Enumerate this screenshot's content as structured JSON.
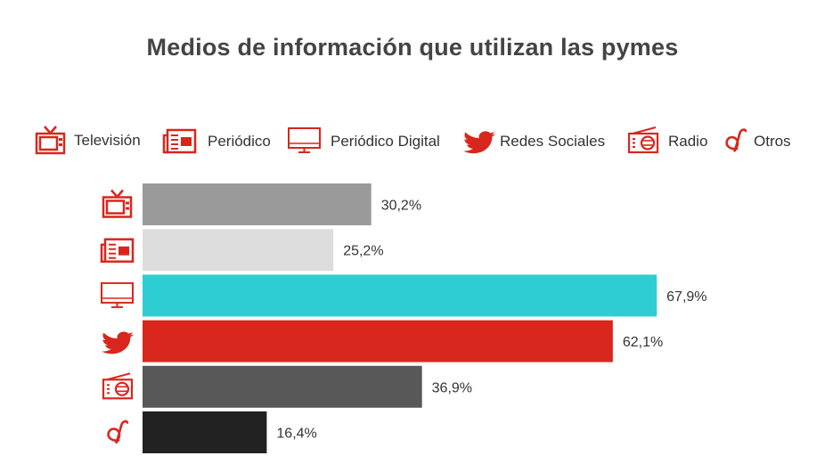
{
  "chart_data": {
    "type": "bar",
    "orientation": "horizontal",
    "title": "Medios de información que utilizan las pymes",
    "categories": [
      "Televisión",
      "Periódico",
      "Periódico Digital",
      "Redes Sociales",
      "Radio",
      "Otros"
    ],
    "values": [
      30.2,
      25.2,
      67.9,
      62.1,
      36.9,
      16.4
    ],
    "value_labels": [
      "30,2%",
      "25,2%",
      "67,9%",
      "62,1%",
      "36,9%",
      "16,4%"
    ],
    "colors": [
      "#9a9a9a",
      "#dddddd",
      "#2ecdd3",
      "#d9261c",
      "#585858",
      "#222222"
    ],
    "icons": [
      "tv-icon",
      "newspaper-icon",
      "monitor-icon",
      "twitter-bird-icon",
      "radio-icon",
      "otros-icon"
    ],
    "xlim": [
      0,
      100
    ],
    "legend_position": "top",
    "grid": false
  },
  "colors": {
    "accent_red": "#d9261c"
  }
}
